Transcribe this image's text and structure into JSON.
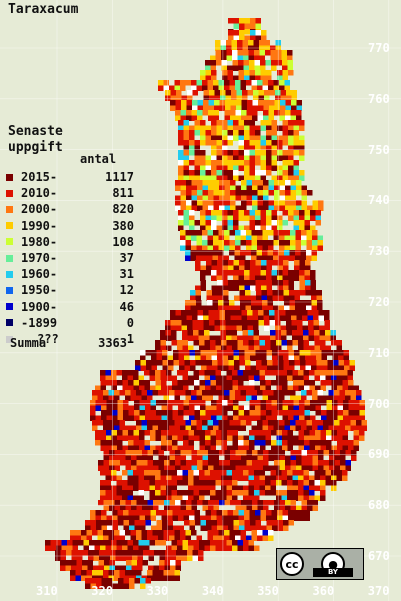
{
  "title": "Taraxacum",
  "legend": {
    "heading1": "Senaste",
    "heading2": "uppgift",
    "count_header": "antal",
    "rows": [
      {
        "label": "2015-",
        "count": "1117",
        "color": "#7a0000"
      },
      {
        "label": "2010-",
        "count": "811",
        "color": "#dd1100"
      },
      {
        "label": "2000-",
        "count": "820",
        "color": "#ff7711"
      },
      {
        "label": "1990-",
        "count": "380",
        "color": "#ffcc00"
      },
      {
        "label": "1980-",
        "count": "108",
        "color": "#ccff33"
      },
      {
        "label": "1970-",
        "count": "37",
        "color": "#66ee99"
      },
      {
        "label": "1960-",
        "count": "31",
        "color": "#22ccee"
      },
      {
        "label": "1950-",
        "count": "12",
        "color": "#1166ee"
      },
      {
        "label": "1900-",
        "count": "46",
        "color": "#0000cc"
      },
      {
        "label": "-1899",
        "count": "0",
        "color": "#000066"
      },
      {
        "label": "???",
        "count": "1",
        "color": "#cccccc"
      }
    ],
    "total_label": "Summa",
    "total_count": "3363"
  },
  "axes": {
    "y_ticks": [
      "770",
      "760",
      "750",
      "740",
      "730",
      "720",
      "710",
      "700",
      "690",
      "680",
      "670"
    ],
    "x_ticks": [
      "310",
      "320",
      "330",
      "340",
      "350",
      "360",
      "370"
    ]
  },
  "license": {
    "cc": "cc",
    "by": "BY"
  },
  "colors": {
    "background": "#e6ebd6",
    "grid": "#ffffff",
    "water": "#e6ebd6"
  }
}
